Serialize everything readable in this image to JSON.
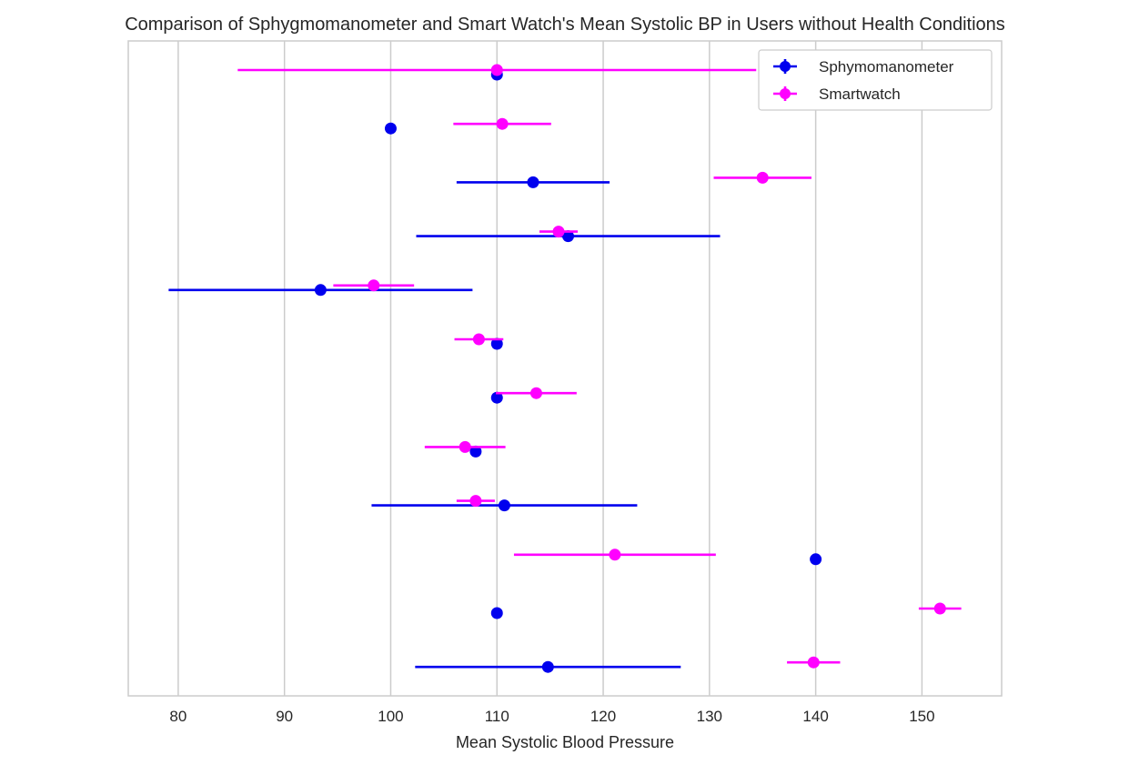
{
  "chart_data": {
    "type": "scatter",
    "title": "Comparison of Sphygmomanometer and Smart Watch's Mean Systolic BP in Users without Health Conditions",
    "xlabel": "Mean Systolic Blood Pressure",
    "ylabel": "",
    "xlim": [
      75.3,
      157.5
    ],
    "x_ticks": [
      80,
      90,
      100,
      110,
      120,
      130,
      140,
      150
    ],
    "grid": "vertical",
    "legend_position": "top-right",
    "rows": 12,
    "series": [
      {
        "name": "Sphymomanometer",
        "color": "#0000ee",
        "points": [
          {
            "x": 110.0,
            "err": 0.0
          },
          {
            "x": 100.0,
            "err": 0.0
          },
          {
            "x": 113.4,
            "err": 7.2
          },
          {
            "x": 116.7,
            "err": 14.3
          },
          {
            "x": 93.4,
            "err": 14.3
          },
          {
            "x": 110.0,
            "err": 0.0
          },
          {
            "x": 110.0,
            "err": 0.0
          },
          {
            "x": 108.0,
            "err": 0.0
          },
          {
            "x": 110.7,
            "err": 12.5
          },
          {
            "x": 140.0,
            "err": 0.0
          },
          {
            "x": 110.0,
            "err": 0.0
          },
          {
            "x": 114.8,
            "err": 12.5
          }
        ]
      },
      {
        "name": "Smartwatch",
        "color": "#ff00ff",
        "points": [
          {
            "x": 110.0,
            "err": 24.4
          },
          {
            "x": 110.5,
            "err": 4.6
          },
          {
            "x": 135.0,
            "err": 4.6
          },
          {
            "x": 115.8,
            "err": 1.8
          },
          {
            "x": 98.4,
            "err": 3.8
          },
          {
            "x": 108.3,
            "err": 2.3
          },
          {
            "x": 113.7,
            "err": 3.8
          },
          {
            "x": 107.0,
            "err": 3.8
          },
          {
            "x": 108.0,
            "err": 1.8
          },
          {
            "x": 121.1,
            "err": 9.5
          },
          {
            "x": 151.7,
            "err": 2.0
          },
          {
            "x": 139.8,
            "err": 2.5
          }
        ]
      }
    ]
  }
}
